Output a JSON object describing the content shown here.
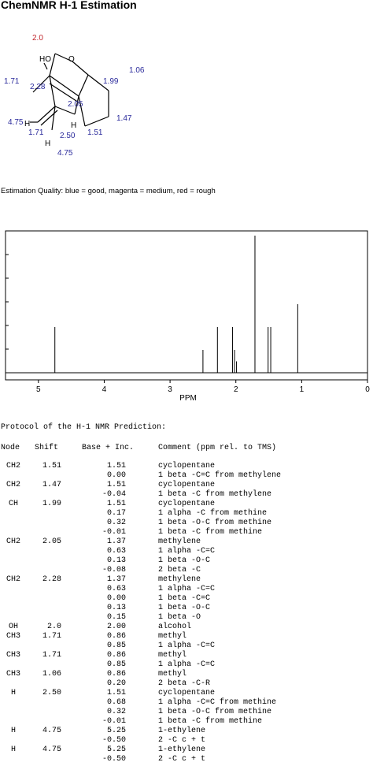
{
  "title": "ChemNMR H-1 Estimation",
  "colors": {
    "assigned": "#2b2b9c",
    "uncertain": "#c0242a",
    "bond": "#000000"
  },
  "molecule": {
    "atom_o": "O",
    "atom_ho": "HO",
    "atom_h": "H",
    "labels": [
      {
        "text": "2.0",
        "cls": "uncertain"
      },
      {
        "text": "1.06",
        "cls": "assigned"
      },
      {
        "text": "1.99",
        "cls": "assigned"
      },
      {
        "text": "1.71",
        "cls": "assigned"
      },
      {
        "text": "2.28",
        "cls": "assigned"
      },
      {
        "text": "2.05",
        "cls": "assigned"
      },
      {
        "text": "1.47",
        "cls": "assigned"
      },
      {
        "text": "4.75",
        "cls": "assigned"
      },
      {
        "text": "1.71",
        "cls": "assigned"
      },
      {
        "text": "2.50",
        "cls": "assigned"
      },
      {
        "text": "1.51",
        "cls": "assigned"
      },
      {
        "text": "4.75",
        "cls": "assigned"
      }
    ]
  },
  "quality_text": "Estimation Quality: blue = good, magenta = medium, red = rough",
  "chart_data": {
    "type": "bar",
    "title": "",
    "xlabel": "PPM",
    "ylabel": "",
    "xlim": [
      5.5,
      0
    ],
    "ylim": [
      0,
      6
    ],
    "x_ticks": [
      "5",
      "4",
      "3",
      "2",
      "1",
      "0"
    ],
    "x_tick_values": [
      5,
      4,
      3,
      2,
      1,
      0
    ],
    "peaks": [
      {
        "shift": 4.75,
        "height": 2
      },
      {
        "shift": 2.5,
        "height": 1
      },
      {
        "shift": 2.28,
        "height": 2
      },
      {
        "shift": 2.05,
        "height": 2
      },
      {
        "shift": 2.02,
        "height": 1
      },
      {
        "shift": 1.99,
        "height": 0.5
      },
      {
        "shift": 1.71,
        "height": 6
      },
      {
        "shift": 1.51,
        "height": 2
      },
      {
        "shift": 1.47,
        "height": 2
      },
      {
        "shift": 1.06,
        "height": 3
      }
    ]
  },
  "protocol": {
    "title": "Protocol of the H-1 NMR Prediction:",
    "headers": {
      "node": "Node",
      "shift": "Shift",
      "base": "Base + Inc.",
      "comment": "Comment (ppm rel. to TMS)"
    },
    "rows": [
      {
        "node": "CH2",
        "shift": "1.51",
        "base": "1.51",
        "comment": "cyclopentane"
      },
      {
        "node": "",
        "shift": "",
        "base": "0.00",
        "comment": "1 beta -C=C from methylene"
      },
      {
        "node": "CH2",
        "shift": "1.47",
        "base": "1.51",
        "comment": "cyclopentane"
      },
      {
        "node": "",
        "shift": "",
        "base": "-0.04",
        "comment": "1 beta -C from methylene"
      },
      {
        "node": "CH",
        "shift": "1.99",
        "base": "1.51",
        "comment": "cyclopentane"
      },
      {
        "node": "",
        "shift": "",
        "base": "0.17",
        "comment": "1 alpha -C from methine"
      },
      {
        "node": "",
        "shift": "",
        "base": "0.32",
        "comment": "1 beta -O-C from methine"
      },
      {
        "node": "",
        "shift": "",
        "base": "-0.01",
        "comment": "1 beta -C from methine"
      },
      {
        "node": "CH2",
        "shift": "2.05",
        "base": "1.37",
        "comment": "methylene"
      },
      {
        "node": "",
        "shift": "",
        "base": "0.63",
        "comment": "1 alpha -C=C"
      },
      {
        "node": "",
        "shift": "",
        "base": "0.13",
        "comment": "1 beta -O-C"
      },
      {
        "node": "",
        "shift": "",
        "base": "-0.08",
        "comment": "2 beta -C"
      },
      {
        "node": "CH2",
        "shift": "2.28",
        "base": "1.37",
        "comment": "methylene"
      },
      {
        "node": "",
        "shift": "",
        "base": "0.63",
        "comment": "1 alpha -C=C"
      },
      {
        "node": "",
        "shift": "",
        "base": "0.00",
        "comment": "1 beta -C=C"
      },
      {
        "node": "",
        "shift": "",
        "base": "0.13",
        "comment": "1 beta -O-C"
      },
      {
        "node": "",
        "shift": "",
        "base": "0.15",
        "comment": "1 beta -O"
      },
      {
        "node": "OH",
        "shift": "2.0",
        "base": "2.00",
        "comment": "alcohol"
      },
      {
        "node": "CH3",
        "shift": "1.71",
        "base": "0.86",
        "comment": "methyl"
      },
      {
        "node": "",
        "shift": "",
        "base": "0.85",
        "comment": "1 alpha -C=C"
      },
      {
        "node": "CH3",
        "shift": "1.71",
        "base": "0.86",
        "comment": "methyl"
      },
      {
        "node": "",
        "shift": "",
        "base": "0.85",
        "comment": "1 alpha -C=C"
      },
      {
        "node": "CH3",
        "shift": "1.06",
        "base": "0.86",
        "comment": "methyl"
      },
      {
        "node": "",
        "shift": "",
        "base": "0.20",
        "comment": "2 beta -C-R"
      },
      {
        "node": "H",
        "shift": "2.50",
        "base": "1.51",
        "comment": "cyclopentane"
      },
      {
        "node": "",
        "shift": "",
        "base": "0.68",
        "comment": "1 alpha -C=C from methine"
      },
      {
        "node": "",
        "shift": "",
        "base": "0.32",
        "comment": "1 beta -O-C from methine"
      },
      {
        "node": "",
        "shift": "",
        "base": "-0.01",
        "comment": "1 beta -C from methine"
      },
      {
        "node": "H",
        "shift": "4.75",
        "base": "5.25",
        "comment": "1-ethylene"
      },
      {
        "node": "",
        "shift": "",
        "base": "-0.50",
        "comment": "2 -C c + t"
      },
      {
        "node": "H",
        "shift": "4.75",
        "base": "5.25",
        "comment": "1-ethylene"
      },
      {
        "node": "",
        "shift": "",
        "base": "-0.50",
        "comment": "2 -C c + t"
      }
    ]
  }
}
